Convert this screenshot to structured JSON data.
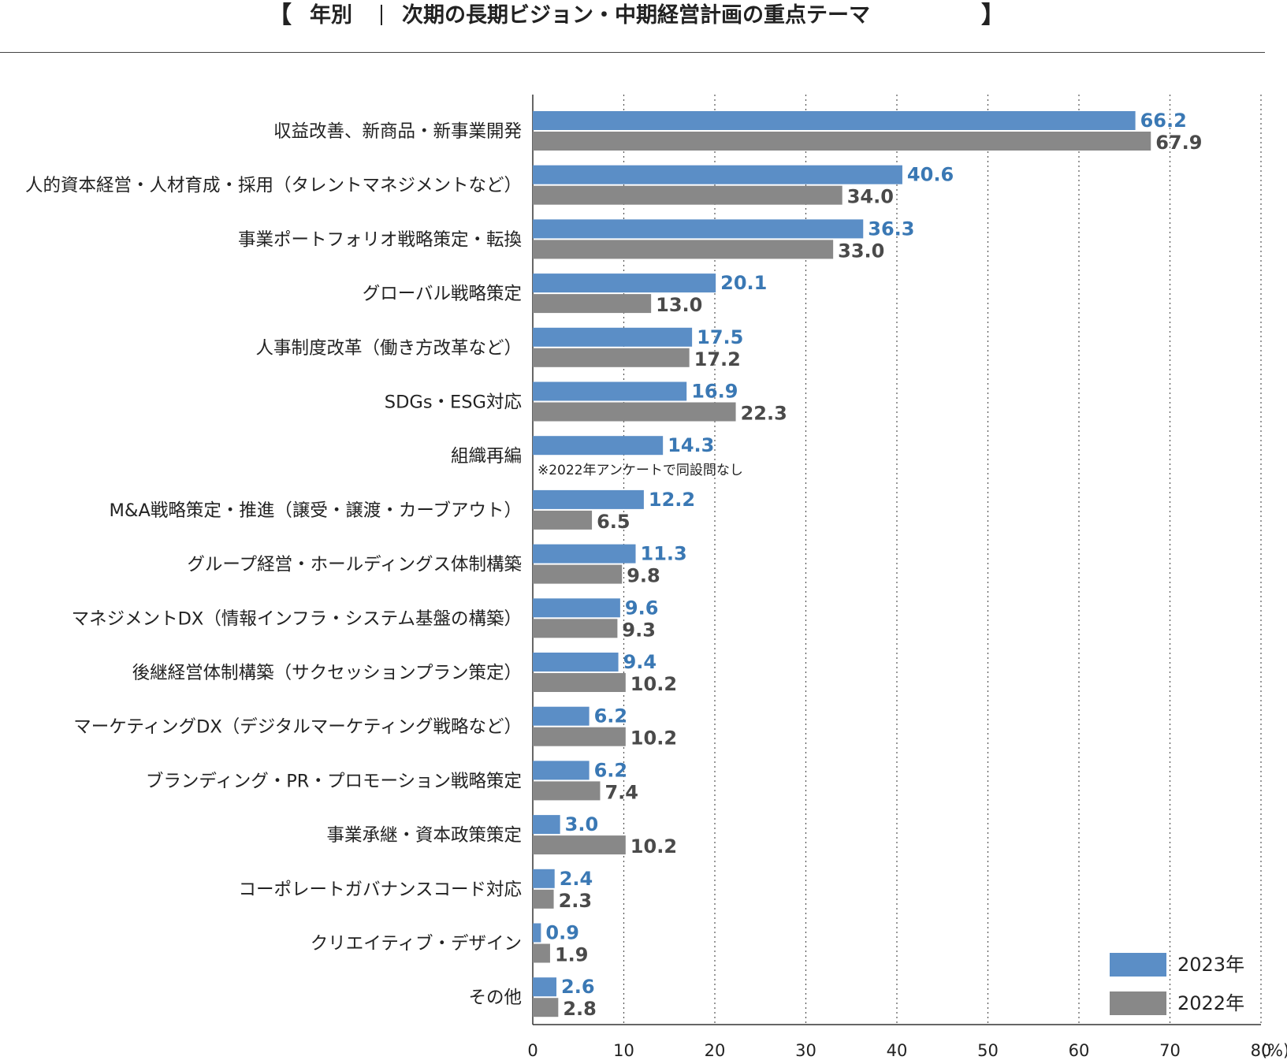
{
  "title": {
    "open_bracket": "【",
    "year_label": "年別",
    "main": "次期の長期ビジョン・中期経営計画の重点テーマ",
    "close_bracket": "】"
  },
  "colors": {
    "series_2023": "#5b8ec6",
    "series_2022": "#888888",
    "label_2023": "#3a78b4",
    "label_2022": "#4a4a4a"
  },
  "chart_data": {
    "type": "bar",
    "orientation": "horizontal",
    "categories": [
      "収益改善、新商品・新事業開発",
      "人的資本経営・人材育成・採用（タレントマネジメントなど）",
      "事業ポートフォリオ戦略策定・転換",
      "グローバル戦略策定",
      "人事制度改革（働き方改革など）",
      "SDGs・ESG対応",
      "組織再編",
      "M&A戦略策定・推進（譲受・譲渡・カーブアウト）",
      "グループ経営・ホールディングス体制構築",
      "マネジメントDX（情報インフラ・システム基盤の構築）",
      "後継経営体制構築（サクセッションプラン策定）",
      "マーケティングDX（デジタルマーケティング戦略など）",
      "ブランディング・PR・プロモーション戦略策定",
      "事業承継・資本政策策定",
      "コーポレートガバナンスコード対応",
      "クリエイティブ・デザイン",
      "その他"
    ],
    "series": [
      {
        "name": "2023年",
        "values": [
          66.2,
          40.6,
          36.3,
          20.1,
          17.5,
          16.9,
          14.3,
          12.2,
          11.3,
          9.6,
          9.4,
          6.2,
          6.2,
          3.0,
          2.4,
          0.9,
          2.6
        ],
        "labels": [
          "66.2",
          "40.6",
          "36.3",
          "20.1",
          "17.5",
          "16.9",
          "14.3",
          "12.2",
          "11.3",
          "9.6",
          "9.4",
          "6.2",
          "6.2",
          "3.0",
          "2.4",
          "0.9",
          "2.6"
        ]
      },
      {
        "name": "2022年",
        "values": [
          67.9,
          34.0,
          33.0,
          13.0,
          17.2,
          22.3,
          null,
          6.5,
          9.8,
          9.3,
          10.2,
          10.2,
          7.4,
          10.2,
          2.3,
          1.9,
          2.8
        ],
        "labels": [
          "67.9",
          "34.0",
          "33.0",
          "13.0",
          "17.2",
          "22.3",
          null,
          "6.5",
          "9.8",
          "9.3",
          "10.2",
          "10.2",
          "7.4",
          "10.2",
          "2.3",
          "1.9",
          "2.8"
        ]
      }
    ],
    "annotations": [
      {
        "category_index": 6,
        "text": "※2022年アンケートで同設問なし"
      }
    ],
    "xlim": [
      0,
      80
    ],
    "xticks": [
      0,
      10,
      20,
      30,
      40,
      50,
      60,
      70,
      80
    ],
    "xtick_labels": [
      "0",
      "10",
      "20",
      "30",
      "40",
      "50",
      "60",
      "70",
      "80"
    ],
    "x_unit": "(%)",
    "grid": "vertical dotted",
    "legend": {
      "position": "bottom-right",
      "entries": [
        "2023年",
        "2022年"
      ]
    }
  }
}
